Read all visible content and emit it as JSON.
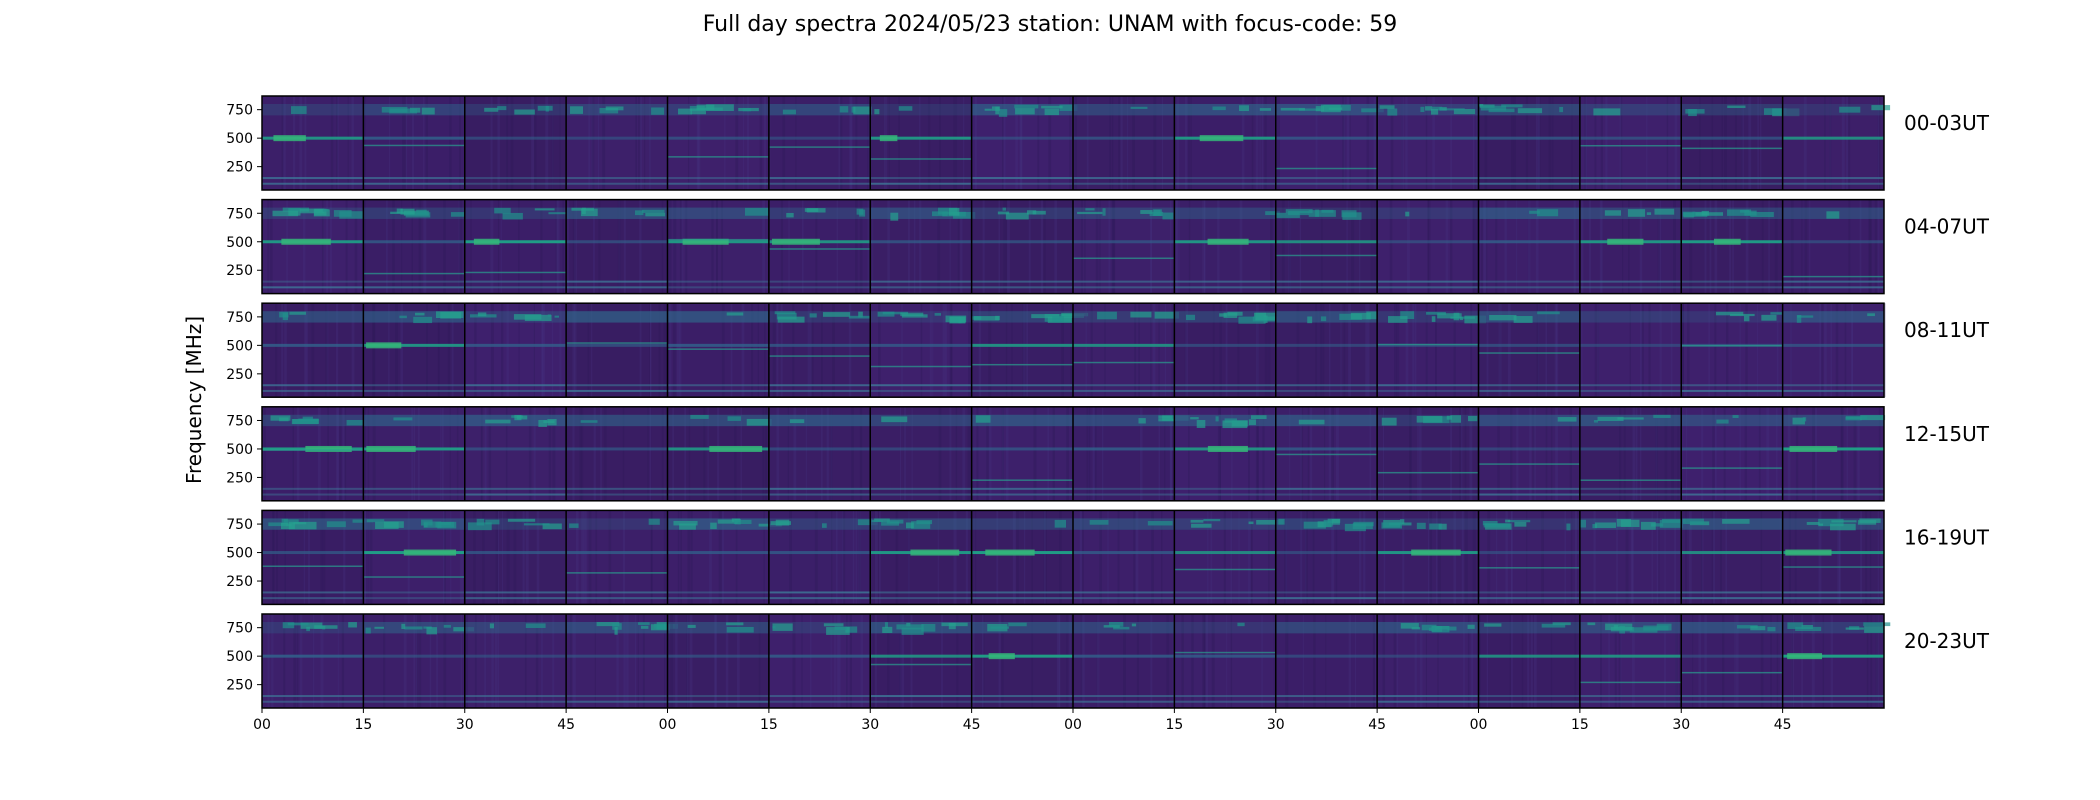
{
  "chart_data": {
    "type": "heatmap",
    "title": "Full day spectra 2024/05/23 station: UNAM with focus-code: 59",
    "ylabel": "Frequency [MHz]",
    "xlabel": "",
    "ylim": [
      45,
      870
    ],
    "yticks": [
      250,
      500,
      750
    ],
    "xtick_labels": [
      "00",
      "15",
      "30",
      "45",
      "00",
      "15",
      "30",
      "45",
      "00",
      "15",
      "30",
      "45",
      "00",
      "15",
      "30",
      "45"
    ],
    "panels_per_row": 16,
    "panel_minutes": 15,
    "colormap": "viridis",
    "background_color": "#3b1f66",
    "rows": [
      {
        "label": "00-03UT",
        "hours": [
          0,
          1,
          2,
          3
        ]
      },
      {
        "label": "04-07UT",
        "hours": [
          4,
          5,
          6,
          7
        ]
      },
      {
        "label": "08-11UT",
        "hours": [
          8,
          9,
          10,
          11
        ]
      },
      {
        "label": "12-15UT",
        "hours": [
          12,
          13,
          14,
          15
        ]
      },
      {
        "label": "16-19UT",
        "hours": [
          16,
          17,
          18,
          19
        ]
      },
      {
        "label": "20-23UT",
        "hours": [
          20,
          21,
          22,
          23
        ]
      }
    ]
  }
}
